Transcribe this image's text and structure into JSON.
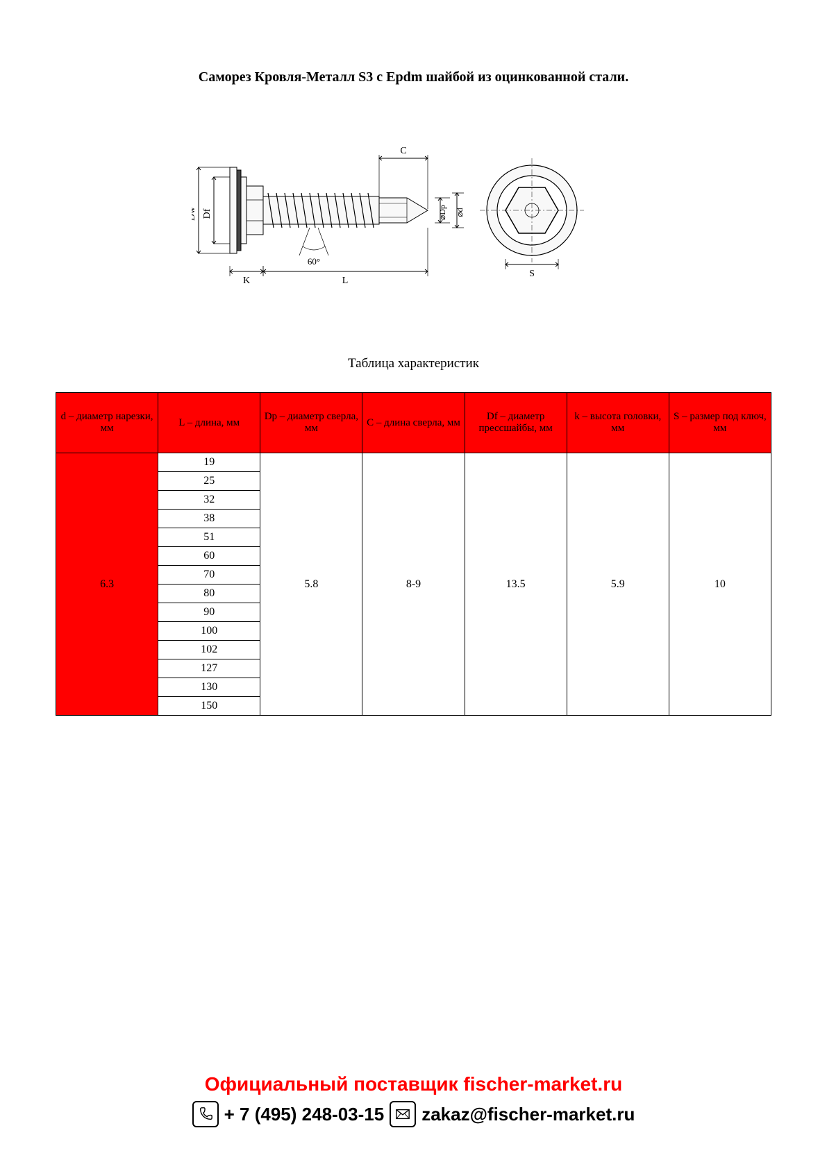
{
  "title": "Саморез Кровля-Металл S3 с Epdm шайбой из оцинкованной стали.",
  "subtitle": "Таблица характеристик",
  "diagram": {
    "labels": {
      "Dw": "Dw",
      "Df": "Df",
      "K": "K",
      "L": "L",
      "C": "C",
      "Dp": "⌀Dp",
      "d": "⌀d",
      "S": "S",
      "angle": "60°"
    },
    "colors": {
      "stroke": "#000000",
      "fill_light": "#f8f8f8",
      "fill_dark": "#555555",
      "dim_line": "#000000"
    }
  },
  "table": {
    "header_bg": "#ff0000",
    "border_color": "#000000",
    "columns": [
      "d – диаметр нарезки, мм",
      "L – длина, мм",
      "Dp – диаметр сверла, мм",
      "C – длина сверла, мм",
      "Df – диаметр прессшайбы, мм",
      "k – высота головки, мм",
      "S – размер под ключ, мм"
    ],
    "d": "6.3",
    "L_values": [
      "19",
      "25",
      "32",
      "38",
      "51",
      "60",
      "70",
      "80",
      "90",
      "100",
      "102",
      "127",
      "130",
      "150"
    ],
    "Dp": "5.8",
    "C": "8-9",
    "Df": "13.5",
    "k": "5.9",
    "S": "10"
  },
  "footer": {
    "line1": "Официальный поставщик fischer-market.ru",
    "phone": "+ 7 (495) 248-03-15",
    "email": "zakaz@fischer-market.ru"
  }
}
